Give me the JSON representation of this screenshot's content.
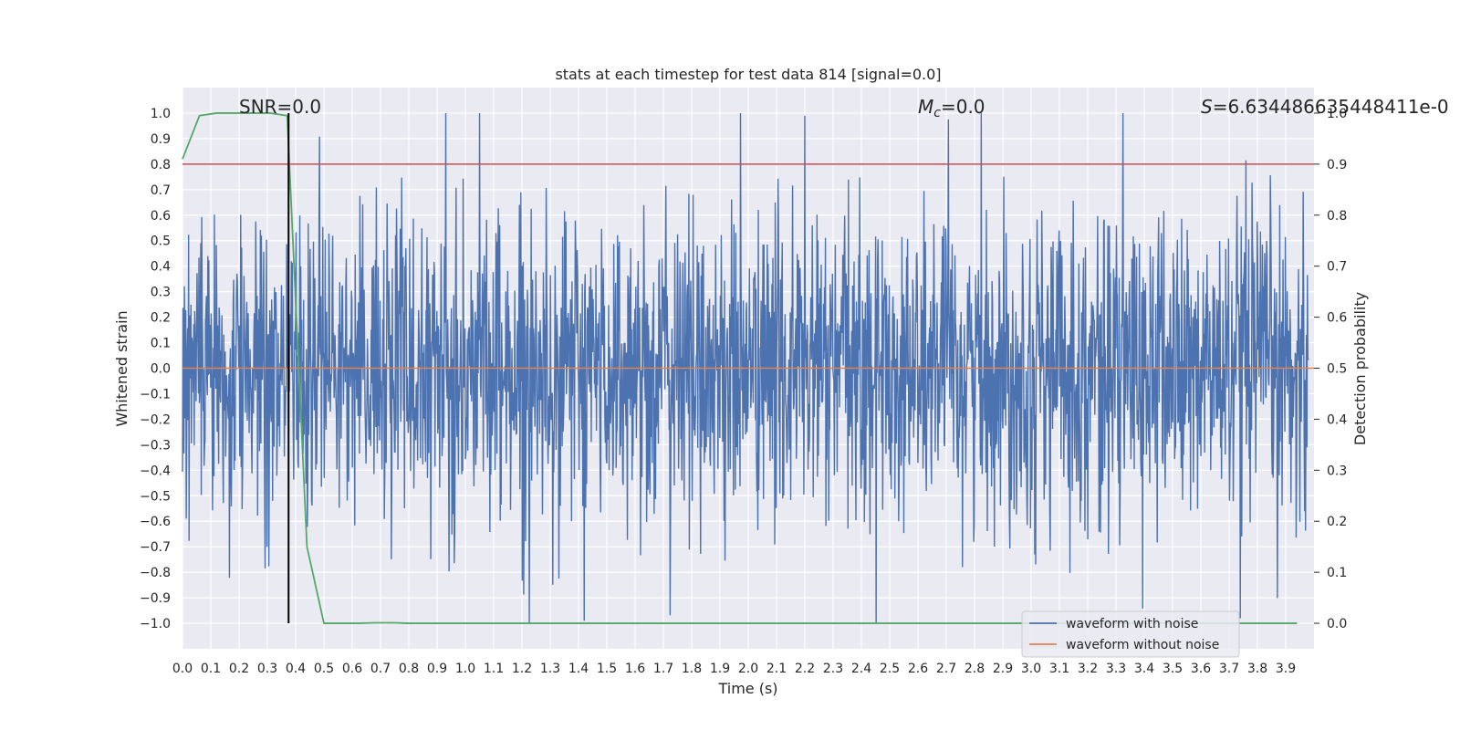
{
  "chart_data": {
    "type": "line",
    "title": "stats at each timestep for test data 814 [signal=0.0]",
    "xlabel": "Time (s)",
    "ylabel_left": "Whitened strain",
    "ylabel_right": "Detection probability",
    "xlim": [
      0.0,
      4.0
    ],
    "ylim_left": [
      -1.1,
      1.1
    ],
    "ylim_right": [
      -0.05,
      1.05
    ],
    "x_ticks": [
      "0.0",
      "0.1",
      "0.2",
      "0.3",
      "0.4",
      "0.5",
      "0.6",
      "0.7",
      "0.8",
      "0.9",
      "1.0",
      "1.1",
      "1.2",
      "1.3",
      "1.4",
      "1.5",
      "1.6",
      "1.7",
      "1.8",
      "1.9",
      "2.0",
      "2.1",
      "2.2",
      "2.3",
      "2.4",
      "2.5",
      "2.6",
      "2.7",
      "2.8",
      "2.9",
      "3.0",
      "3.1",
      "3.2",
      "3.3",
      "3.4",
      "3.5",
      "3.6",
      "3.7",
      "3.8",
      "3.9"
    ],
    "y_ticks_left": [
      "1.0",
      "0.9",
      "0.8",
      "0.7",
      "0.6",
      "0.5",
      "0.4",
      "0.3",
      "0.2",
      "0.1",
      "0.0",
      "-0.1",
      "-0.2",
      "-0.3",
      "-0.4",
      "-0.5",
      "-0.6",
      "-0.7",
      "-0.8",
      "-0.9",
      "-1.0"
    ],
    "y_ticks_right": [
      "1.0",
      "0.9",
      "0.8",
      "0.7",
      "0.6",
      "0.5",
      "0.4",
      "0.3",
      "0.2",
      "0.1",
      "0.0"
    ],
    "annotations": {
      "snr": "SNR=0.0",
      "mc_symbol": "M",
      "mc_sub": "c",
      "mc_value": "=0.0",
      "s_symbol": "S",
      "s_value": "=6.634486635448411e-0"
    },
    "series": [
      {
        "name": "waveform with noise",
        "color": "#4c72b0",
        "kind": "noise",
        "sample_count": 2400,
        "amplitude_std": 0.3,
        "clip": [
          -1.0,
          1.0
        ],
        "peaks": [
          [
            0.93,
            1.0
          ],
          [
            2.2,
            0.99
          ],
          [
            1.42,
            -0.99
          ],
          [
            3.74,
            -0.98
          ]
        ]
      },
      {
        "name": "waveform without noise",
        "color": "#dd8452",
        "x": [
          0.0,
          4.0
        ],
        "y": [
          0.0,
          0.0
        ]
      },
      {
        "name": "detection probability",
        "color": "#55a868",
        "axis": "right",
        "x": [
          0.0,
          0.06,
          0.12,
          0.18,
          0.25,
          0.31,
          0.37,
          0.44,
          0.5,
          0.56,
          0.62,
          0.68,
          0.75,
          0.8,
          3.94
        ],
        "y": [
          0.91,
          0.995,
          1.0,
          1.0,
          1.0,
          1.0,
          0.995,
          0.15,
          0.0,
          0.0,
          0.0,
          0.001,
          0.001,
          0.0,
          0.0
        ]
      }
    ],
    "threshold": {
      "value": 0.9,
      "axis": "right",
      "color": "#c44e52"
    },
    "marker_line": {
      "x": 0.375,
      "color": "#000000"
    },
    "legend": {
      "placement": "lower-right",
      "entries": [
        {
          "label": "waveform with noise",
          "color": "#4c72b0"
        },
        {
          "label": "waveform without noise",
          "color": "#dd8452"
        }
      ]
    },
    "grid": true,
    "background": "#eaeaf2"
  }
}
